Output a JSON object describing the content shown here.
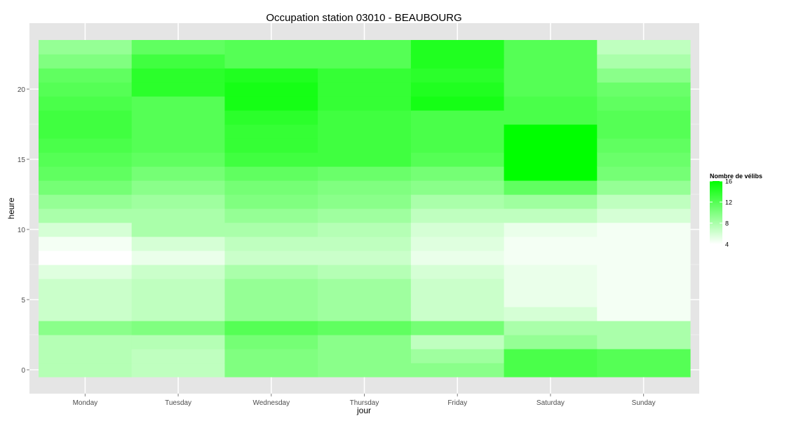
{
  "chart_data": {
    "type": "heatmap",
    "title": "Occupation station 03010 - BEAUBOURG",
    "xlabel": "jour",
    "ylabel": "heure",
    "categories": [
      "Monday",
      "Tuesday",
      "Wednesday",
      "Thursday",
      "Friday",
      "Saturday",
      "Sunday"
    ],
    "hours": [
      0,
      1,
      2,
      3,
      4,
      5,
      6,
      7,
      8,
      9,
      10,
      11,
      12,
      13,
      14,
      15,
      16,
      17,
      18,
      19,
      20,
      21,
      22,
      23
    ],
    "ylim": [
      -0.5,
      23.5
    ],
    "yticks": [
      0,
      5,
      10,
      15,
      20
    ],
    "grid": true,
    "legend": {
      "title": "Nombre de vélibs",
      "placement": "right",
      "min": 4,
      "max": 16,
      "ticks": [
        16,
        12,
        8,
        4
      ],
      "color_low": "#ffffff",
      "color_high": "#00ff00"
    },
    "values": [
      [
        7.5,
        7.5,
        7.5,
        9.5,
        6.5,
        6.5,
        6.5,
        5.5,
        4.0,
        4.5,
        6.0,
        8.0,
        9.0,
        10.5,
        11.5,
        12.0,
        12.5,
        13.0,
        13.0,
        12.5,
        12.0,
        11.5,
        10.0,
        9.0
      ],
      [
        7.0,
        7.0,
        7.5,
        10.0,
        7.0,
        7.0,
        7.0,
        6.5,
        5.0,
        6.0,
        8.0,
        8.0,
        8.5,
        9.5,
        10.5,
        11.5,
        12.0,
        12.0,
        12.0,
        12.0,
        14.0,
        14.0,
        13.0,
        11.5
      ],
      [
        10.0,
        10.0,
        10.5,
        12.0,
        9.0,
        9.0,
        9.0,
        8.0,
        6.5,
        7.0,
        8.0,
        9.0,
        10.0,
        10.5,
        11.5,
        13.0,
        13.5,
        13.5,
        14.0,
        15.0,
        15.0,
        14.5,
        12.0,
        12.0
      ],
      [
        9.5,
        9.5,
        9.5,
        11.5,
        8.5,
        8.5,
        8.5,
        7.5,
        6.5,
        7.0,
        7.5,
        8.5,
        9.5,
        10.0,
        11.0,
        13.0,
        13.0,
        13.0,
        13.0,
        13.5,
        13.5,
        13.5,
        12.0,
        12.0
      ],
      [
        9.5,
        8.5,
        7.0,
        10.5,
        6.5,
        6.5,
        6.5,
        6.0,
        5.0,
        5.5,
        6.0,
        7.0,
        8.0,
        9.5,
        10.5,
        12.0,
        12.5,
        12.5,
        12.5,
        15.0,
        14.5,
        14.0,
        14.5,
        14.5
      ],
      [
        12.5,
        12.5,
        9.0,
        8.0,
        6.0,
        5.0,
        5.0,
        5.0,
        4.5,
        4.5,
        5.0,
        7.0,
        8.5,
        11.5,
        16.0,
        16.0,
        16.0,
        16.0,
        12.5,
        12.5,
        12.0,
        12.0,
        12.0,
        12.0
      ],
      [
        12.0,
        12.0,
        8.0,
        8.0,
        4.5,
        4.5,
        4.5,
        4.5,
        4.5,
        4.5,
        4.5,
        6.0,
        7.0,
        9.0,
        10.5,
        11.0,
        11.5,
        12.0,
        12.0,
        11.5,
        11.0,
        9.5,
        8.0,
        7.0
      ]
    ]
  }
}
